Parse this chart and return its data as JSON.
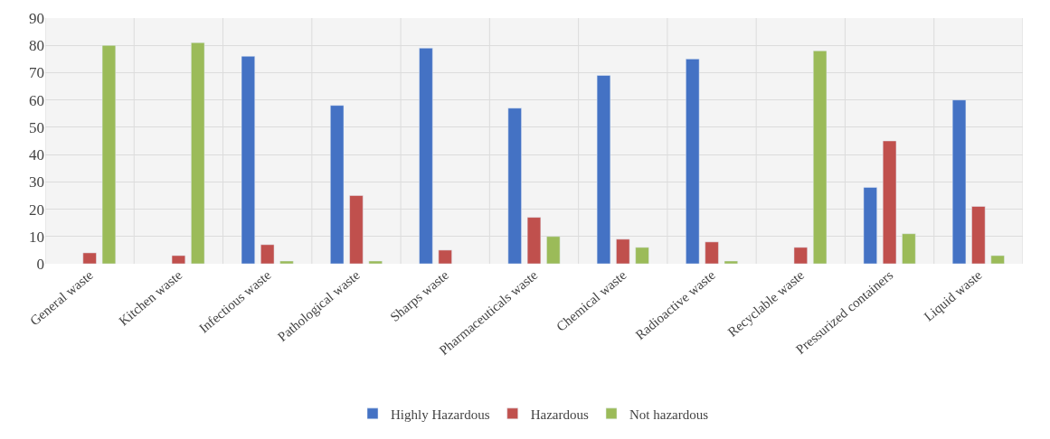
{
  "chart_data": {
    "type": "bar",
    "categories": [
      "General waste",
      "Kitchen waste",
      "Infectious waste",
      "Pathological waste",
      "Sharps waste",
      "Pharmaceuticals waste",
      "Chemical waste",
      "Radioactive waste",
      "Recyclable waste",
      "Pressurized containers",
      "Liquid waste"
    ],
    "series": [
      {
        "name": "Highly Hazardous",
        "color": "#4472c4",
        "values": [
          null,
          null,
          76,
          58,
          79,
          57,
          69,
          75,
          null,
          28,
          60
        ]
      },
      {
        "name": "Hazardous",
        "color": "#c0504d",
        "values": [
          4,
          3,
          7,
          25,
          5,
          17,
          9,
          8,
          6,
          45,
          21
        ]
      },
      {
        "name": "Not hazardous",
        "color": "#9bbb59",
        "values": [
          80,
          81,
          1,
          1,
          null,
          10,
          6,
          1,
          78,
          11,
          3
        ]
      }
    ],
    "ylim": [
      0,
      90
    ],
    "yticks": [
      0,
      10,
      20,
      30,
      40,
      50,
      60,
      70,
      80,
      90
    ],
    "grid": true,
    "legend": "bottom"
  }
}
